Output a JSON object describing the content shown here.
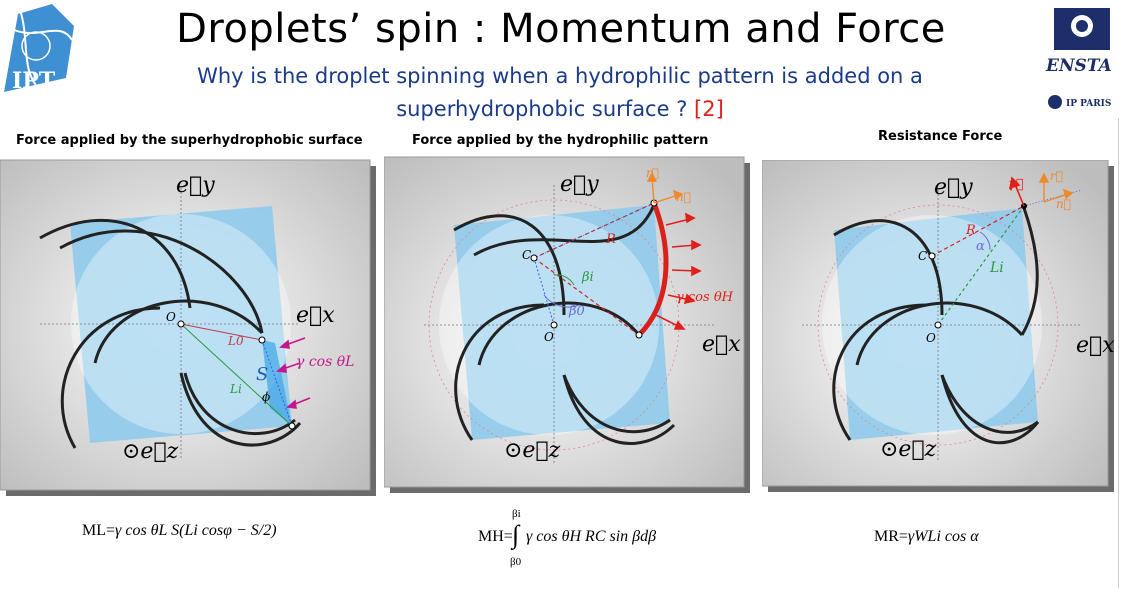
{
  "slide": {
    "title": "Droplets’ spin : Momentum and Force",
    "subtitle_line1": "Why is the droplet spinning when a hydrophilic pattern is added on a",
    "subtitle_line2": "superhydrophobic surface ?",
    "reference": "[2]"
  },
  "logos": {
    "left": "IPT",
    "right_name": "ENSTA",
    "right_sub": "IP PARIS"
  },
  "panels": [
    {
      "title": "Force applied by the superhydrophobic surface",
      "labels": {
        "ey": "e⃗y",
        "ex": "e⃗x",
        "ez": "⊙e⃗z",
        "o": "O",
        "L0": "L0",
        "Li": "Li",
        "S": "S",
        "phi": "ϕ",
        "force": "γ cos θL"
      },
      "formula": {
        "lhs": "ML=",
        "rhs": "γ cos θL S(Li cosφ − S/2)"
      }
    },
    {
      "title": "Force applied by the hydrophilic pattern",
      "labels": {
        "ey": "e⃗y",
        "ex": "e⃗x",
        "ez": "⊙e⃗z",
        "o": "O",
        "c": "C",
        "R": "R",
        "r": "r⃗",
        "n": "n⃗",
        "beta_i": "βi",
        "beta_0": "β0",
        "force": "γ cos θH"
      },
      "formula": {
        "lhs": "MH=",
        "rhs": "γ cos θH RC sin βdβ",
        "upper": "βi",
        "lower": "β0"
      }
    },
    {
      "title": "Resistance Force",
      "labels": {
        "ey": "e⃗y",
        "ex": "e⃗x",
        "ez": "⊙e⃗z",
        "o": "O",
        "c": "C",
        "R": "R",
        "alpha": "α",
        "Li": "Li",
        "gamma": "γ⃗",
        "r": "r⃗",
        "n": "n⃗"
      },
      "formula": {
        "lhs": "MR=",
        "rhs": "γWLi cos α"
      }
    }
  ],
  "colors": {
    "title_blue": "#1a3a8a",
    "reference_red": "#e0201b",
    "droplet_blue": "#8fcbec",
    "hydrophilic_red": "#d9211c",
    "force_magenta": "#c3178f",
    "force_red": "#e0201b",
    "vector_orange": "#f0892a"
  }
}
